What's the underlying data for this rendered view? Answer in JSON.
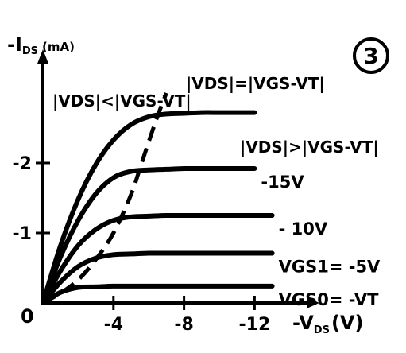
{
  "figure_number": "3",
  "chart_data": {
    "type": "line",
    "title": "",
    "ylabel": {
      "prefix": "-I",
      "sub": "DS",
      "unit": "(mA)"
    },
    "xlabel": {
      "prefix": "-V",
      "sub": "DS",
      "unit": "(V)"
    },
    "origin_label": "0",
    "xlim": [
      0,
      -14.5
    ],
    "ylim": [
      0,
      -3.3
    ],
    "x_ticks": [
      {
        "value": -4,
        "label": "-4"
      },
      {
        "value": -8,
        "label": "-8"
      },
      {
        "value": -12,
        "label": "-12"
      }
    ],
    "y_ticks": [
      {
        "value": -1,
        "label": "-1"
      },
      {
        "value": -2,
        "label": "-2"
      }
    ],
    "grid": false,
    "series": [
      {
        "label": "",
        "knee": -6.0,
        "x": [
          0,
          -1,
          -2,
          -3,
          -4,
          -5,
          -6,
          -7,
          -8,
          -9,
          -10,
          -11,
          -12
        ],
        "y": [
          0,
          -0.82,
          -1.48,
          -1.98,
          -2.33,
          -2.55,
          -2.66,
          -2.7,
          -2.71,
          -2.72,
          -2.72,
          -2.72,
          -2.72
        ]
      },
      {
        "label": "-15V",
        "knee": -5.0,
        "x": [
          0,
          -1,
          -2,
          -3,
          -4,
          -5,
          -6,
          -7,
          -8,
          -9,
          -10,
          -11,
          -12
        ],
        "y": [
          0,
          -0.66,
          -1.18,
          -1.56,
          -1.79,
          -1.88,
          -1.9,
          -1.91,
          -1.92,
          -1.92,
          -1.92,
          -1.92,
          -1.92
        ]
      },
      {
        "label": "- 10V",
        "knee": -4.5,
        "x": [
          0,
          -1,
          -2,
          -3,
          -4,
          -5,
          -6,
          -7,
          -8,
          -9,
          -10,
          -11,
          -12,
          -13
        ],
        "y": [
          0,
          -0.46,
          -0.82,
          -1.05,
          -1.18,
          -1.23,
          -1.24,
          -1.25,
          -1.25,
          -1.25,
          -1.25,
          -1.25,
          -1.25,
          -1.25
        ]
      },
      {
        "label": "VGS1= -5V",
        "knee": -3.5,
        "x": [
          0,
          -1,
          -2,
          -3,
          -4,
          -5,
          -6,
          -7,
          -8,
          -9,
          -10,
          -11,
          -12,
          -13
        ],
        "y": [
          0,
          -0.3,
          -0.52,
          -0.64,
          -0.69,
          -0.7,
          -0.71,
          -0.71,
          -0.71,
          -0.71,
          -0.71,
          -0.71,
          -0.71,
          -0.71
        ]
      },
      {
        "label": "VGS0= -VT",
        "knee": -2.0,
        "x": [
          0,
          -1,
          -2,
          -3,
          -4,
          -5,
          -6,
          -7,
          -8,
          -9,
          -10,
          -11,
          -12,
          -13
        ],
        "y": [
          0,
          -0.15,
          -0.22,
          -0.23,
          -0.24,
          -0.24,
          -0.24,
          -0.24,
          -0.24,
          -0.24,
          -0.24,
          -0.24,
          -0.24,
          -0.24
        ]
      }
    ],
    "boundary_curve": {
      "style": "dashed",
      "x": [
        0,
        -1,
        -2,
        -3,
        -4,
        -5,
        -5.6,
        -6.4,
        -7.0
      ],
      "y": [
        0,
        -0.14,
        -0.33,
        -0.62,
        -1.0,
        -1.55,
        -2.0,
        -2.6,
        -3.0
      ]
    },
    "annotations": {
      "triode_region": "|VDS|<|VGS-VT|",
      "boundary": "|VDS|=|VGS-VT|",
      "saturation_region": "|VDS|>|VGS-VT|"
    }
  }
}
